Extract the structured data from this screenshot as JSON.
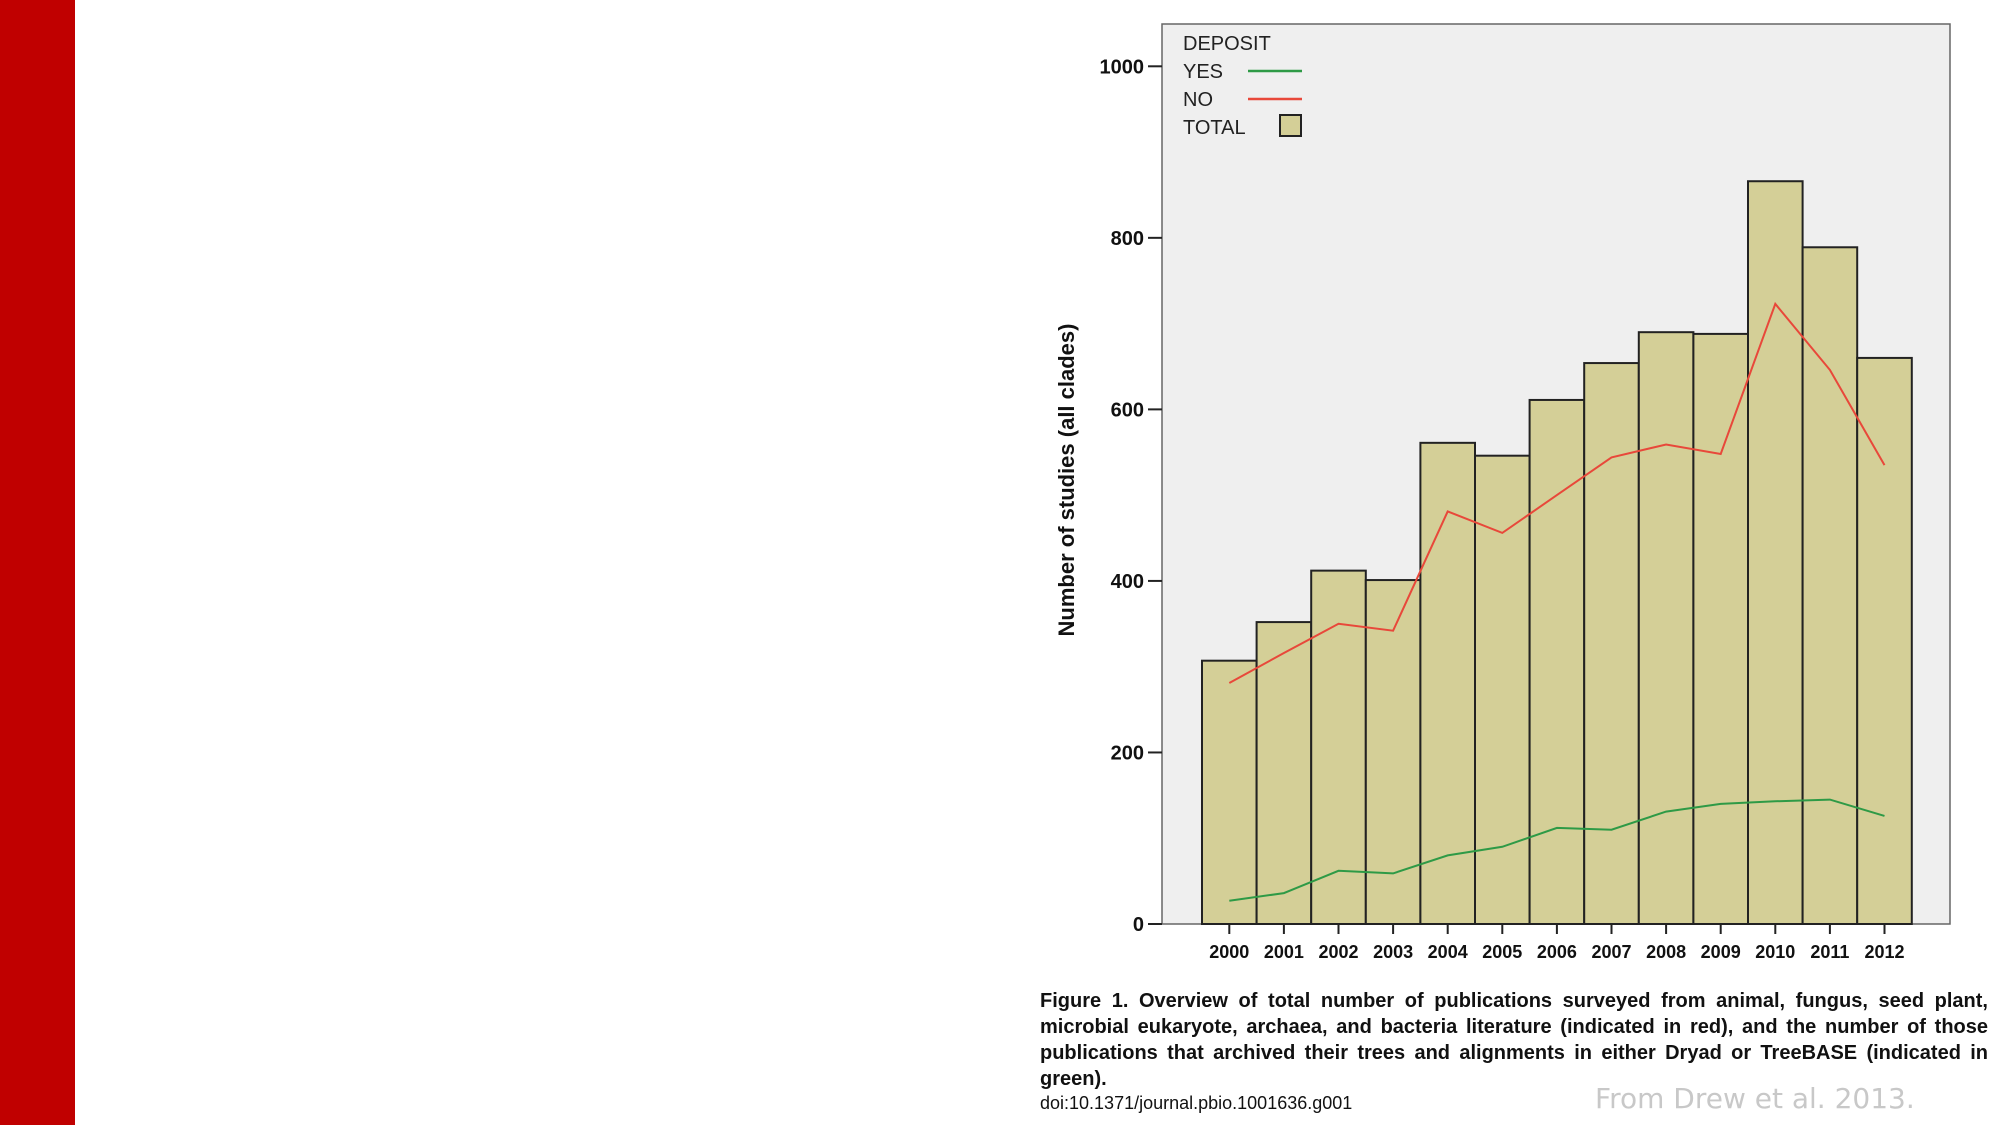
{
  "chart_data": {
    "type": "bar",
    "ylabel": "Number of studies (all clades)",
    "xlabel": "",
    "ylim": [
      0,
      1050
    ],
    "yticks": [
      0,
      200,
      400,
      600,
      800,
      1000
    ],
    "categories": [
      "2000",
      "2001",
      "2002",
      "2003",
      "2004",
      "2005",
      "2006",
      "2007",
      "2008",
      "2009",
      "2010",
      "2011",
      "2012"
    ],
    "legend": {
      "title": "DEPOSIT",
      "position": "top-left",
      "entries": [
        {
          "label": "YES",
          "kind": "line",
          "color": "#2e9a46"
        },
        {
          "label": "NO",
          "kind": "line",
          "color": "#e8483a"
        },
        {
          "label": "TOTAL",
          "kind": "box",
          "color": "#d4cf97"
        }
      ]
    },
    "bars": {
      "name": "TOTAL",
      "color": "#d4cf97",
      "values": [
        307,
        352,
        412,
        401,
        561,
        546,
        611,
        654,
        690,
        688,
        866,
        789,
        660
      ]
    },
    "series": [
      {
        "name": "NO",
        "color": "#e8483a",
        "values": [
          281,
          316,
          350,
          342,
          481,
          456,
          500,
          544,
          559,
          548,
          723,
          646,
          535
        ]
      },
      {
        "name": "YES",
        "color": "#2e9a46",
        "values": [
          27,
          36,
          62,
          59,
          80,
          90,
          112,
          110,
          131,
          140,
          143,
          145,
          126
        ]
      }
    ],
    "grid": false,
    "plot_background": "#efefef"
  },
  "caption": {
    "text": "Figure 1. Overview of total number of publications surveyed from animal, fungus, seed plant, microbial eukaryote, archaea, and bacteria literature (indicated in red), and the number of those publications that archived their trees and alignments in either Dryad or TreeBASE (indicated in green).",
    "doi": "doi:10.1371/journal.pbio.1001636.g001"
  },
  "credit": "From Drew et al. 2013.",
  "colors": {
    "accent_bar": "#c00000"
  }
}
